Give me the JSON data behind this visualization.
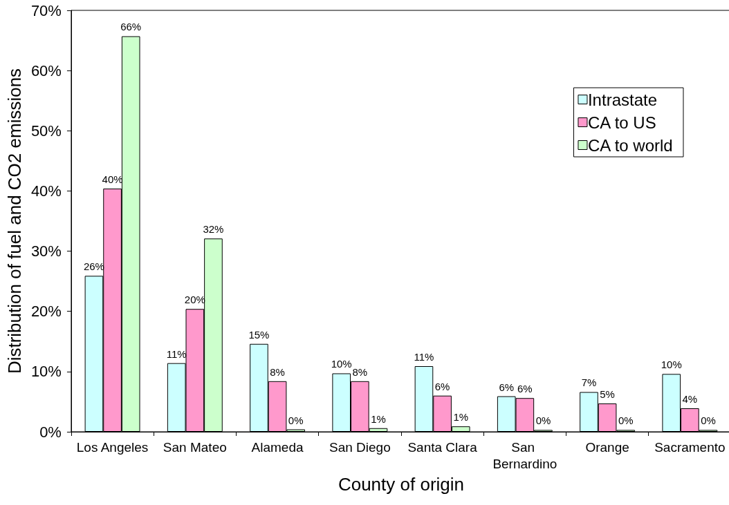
{
  "chart_data": {
    "type": "bar",
    "xlabel": "County of origin",
    "ylabel": "Distribution of fuel and CO2 emissions",
    "categories": [
      "Los Angeles",
      "San Mateo",
      "Alameda",
      "San Diego",
      "Santa Clara",
      "San Bernardino",
      "Orange",
      "Sacramento"
    ],
    "series": [
      {
        "name": "Intrastate",
        "color": "#ccffff",
        "values": [
          25.9,
          11.4,
          14.6,
          9.7,
          10.9,
          5.9,
          6.6,
          9.6
        ],
        "value_labels": [
          "26%",
          "11%",
          "15%",
          "10%",
          "11%",
          "6%",
          "7%",
          "10%"
        ]
      },
      {
        "name": "CA to US",
        "color": "#ff99cc",
        "values": [
          40.4,
          20.4,
          8.4,
          8.4,
          6.0,
          5.6,
          4.7,
          3.9
        ],
        "value_labels": [
          "40%",
          "20%",
          "8%",
          "8%",
          "6%",
          "6%",
          "5%",
          "4%"
        ]
      },
      {
        "name": "CA to world",
        "color": "#ccffcc",
        "values": [
          65.7,
          32.1,
          0.4,
          0.6,
          0.9,
          0.3,
          0.3,
          0.3
        ],
        "value_labels": [
          "66%",
          "32%",
          "0%",
          "1%",
          "1%",
          "0%",
          "0%",
          "0%"
        ]
      }
    ],
    "ylim": [
      0,
      70
    ],
    "yticks": [
      {
        "value": 0,
        "label": "0%"
      },
      {
        "value": 10,
        "label": "10%"
      },
      {
        "value": 20,
        "label": "20%"
      },
      {
        "value": 30,
        "label": "30%"
      },
      {
        "value": 40,
        "label": "40%"
      },
      {
        "value": 50,
        "label": "50%"
      },
      {
        "value": 60,
        "label": "60%"
      },
      {
        "value": 70,
        "label": "70%"
      }
    ],
    "grid": false,
    "legend": "top right"
  }
}
